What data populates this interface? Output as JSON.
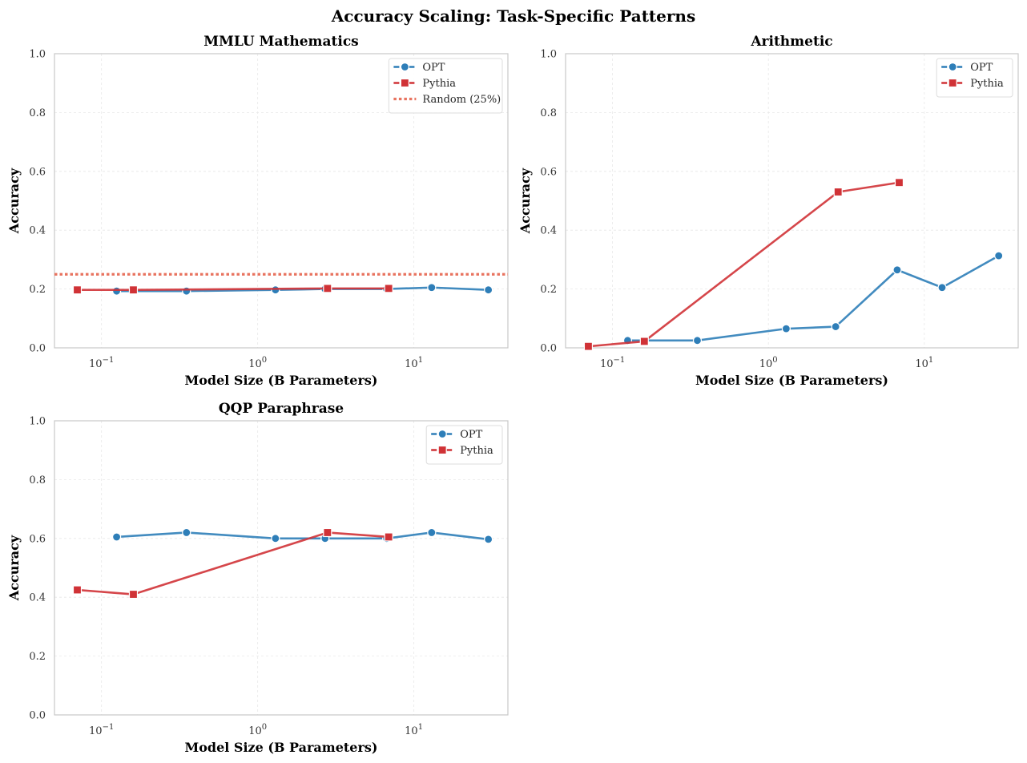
{
  "figure": {
    "title": "Accuracy Scaling: Task-Specific Patterns"
  },
  "colors": {
    "opt": "#2E7EB8",
    "pythia": "#D03236",
    "random": "#E8735F",
    "grid": "#e8e8e8",
    "frame": "#c8c8c8"
  },
  "chart_data": [
    {
      "type": "line",
      "title": "MMLU Mathematics",
      "xlabel": "Model Size (B Parameters)",
      "ylabel": "Accuracy",
      "xscale": "log",
      "xlim": [
        0.05,
        40
      ],
      "ylim": [
        0,
        1
      ],
      "xticks": [
        {
          "value": 0.1,
          "base": "10",
          "exp": "−1"
        },
        {
          "value": 1,
          "base": "10",
          "exp": "0"
        },
        {
          "value": 10,
          "base": "10",
          "exp": "1"
        }
      ],
      "yticks": [
        "0.0",
        "0.2",
        "0.4",
        "0.6",
        "0.8",
        "1.0"
      ],
      "grid": true,
      "legend": "top-right",
      "series": [
        {
          "name": "OPT",
          "key": "opt",
          "marker": "circle",
          "x": [
            0.125,
            0.35,
            1.3,
            2.7,
            6.7,
            13,
            30
          ],
          "y": [
            0.193,
            0.193,
            0.197,
            0.2,
            0.2,
            0.205,
            0.197
          ]
        },
        {
          "name": "Pythia",
          "key": "pythia",
          "marker": "square",
          "x": [
            0.07,
            0.16,
            2.8,
            6.9
          ],
          "y": [
            0.197,
            0.197,
            0.202,
            0.202
          ]
        }
      ],
      "hlines": [
        {
          "name": "Random (25%)",
          "key": "random",
          "y": 0.25
        }
      ]
    },
    {
      "type": "line",
      "title": "Arithmetic",
      "xlabel": "Model Size (B Parameters)",
      "ylabel": "Accuracy",
      "xscale": "log",
      "xlim": [
        0.05,
        40
      ],
      "ylim": [
        0,
        1
      ],
      "xticks": [
        {
          "value": 0.1,
          "base": "10",
          "exp": "−1"
        },
        {
          "value": 1,
          "base": "10",
          "exp": "0"
        },
        {
          "value": 10,
          "base": "10",
          "exp": "1"
        }
      ],
      "yticks": [
        "0.0",
        "0.2",
        "0.4",
        "0.6",
        "0.8",
        "1.0"
      ],
      "grid": true,
      "legend": "top-right",
      "series": [
        {
          "name": "OPT",
          "key": "opt",
          "marker": "circle",
          "x": [
            0.125,
            0.35,
            1.3,
            2.7,
            6.7,
            13,
            30
          ],
          "y": [
            0.025,
            0.025,
            0.065,
            0.072,
            0.265,
            0.205,
            0.313
          ]
        },
        {
          "name": "Pythia",
          "key": "pythia",
          "marker": "square",
          "x": [
            0.07,
            0.16,
            2.8,
            6.9
          ],
          "y": [
            0.005,
            0.022,
            0.53,
            0.562
          ]
        }
      ],
      "hlines": []
    },
    {
      "type": "line",
      "title": "QQP Paraphrase",
      "xlabel": "Model Size (B Parameters)",
      "ylabel": "Accuracy",
      "xscale": "log",
      "xlim": [
        0.05,
        40
      ],
      "ylim": [
        0,
        1
      ],
      "xticks": [
        {
          "value": 0.1,
          "base": "10",
          "exp": "−1"
        },
        {
          "value": 1,
          "base": "10",
          "exp": "0"
        },
        {
          "value": 10,
          "base": "10",
          "exp": "1"
        }
      ],
      "yticks": [
        "0.0",
        "0.2",
        "0.4",
        "0.6",
        "0.8",
        "1.0"
      ],
      "grid": true,
      "legend": "top-right",
      "series": [
        {
          "name": "OPT",
          "key": "opt",
          "marker": "circle",
          "x": [
            0.125,
            0.35,
            1.3,
            2.7,
            6.7,
            13,
            30
          ],
          "y": [
            0.605,
            0.62,
            0.6,
            0.6,
            0.6,
            0.62,
            0.597
          ]
        },
        {
          "name": "Pythia",
          "key": "pythia",
          "marker": "square",
          "x": [
            0.07,
            0.16,
            2.8,
            6.9
          ],
          "y": [
            0.425,
            0.41,
            0.62,
            0.605
          ]
        }
      ],
      "hlines": []
    }
  ]
}
